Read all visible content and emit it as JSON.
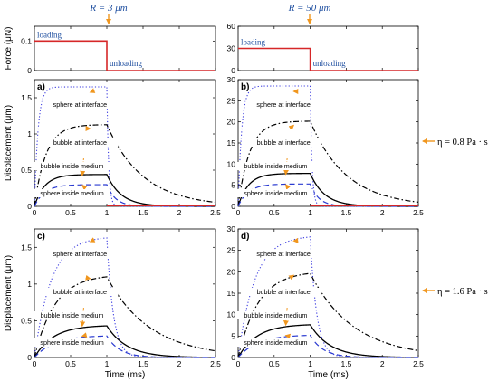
{
  "header": {
    "radius_small": "R = 3 μm",
    "radius_large": "R = 50 μm"
  },
  "viscosity": {
    "row1": "η = 0.8 Pa · s",
    "row2": "η = 1.6 Pa · s"
  },
  "colors": {
    "force": "#d62728",
    "sphere_interface": "#3a3adf",
    "bubble_interface": "#000000",
    "bubble_medium": "#000000",
    "sphere_medium": "#2a3ad0",
    "arrow": "#f0961e",
    "blue_text": "#1f4fa0"
  },
  "chart_data": [
    {
      "id": "force-left",
      "type": "line",
      "ylabel": "Force (μN)",
      "xlim": [
        0,
        2.5
      ],
      "ylim": [
        0,
        0.15
      ],
      "yticks": [
        "0",
        "0.1"
      ],
      "yticks_values": [
        0,
        0.1
      ],
      "annotations": [
        "loading",
        "unloading"
      ],
      "series": [
        {
          "x": [
            0,
            1,
            1,
            2.5
          ],
          "y": [
            0.1,
            0.1,
            0,
            0
          ]
        }
      ]
    },
    {
      "id": "force-right",
      "type": "line",
      "xlim": [
        0,
        2.5
      ],
      "ylim": [
        0,
        60
      ],
      "yticks": [
        "0",
        "30",
        "60"
      ],
      "yticks_values": [
        0,
        30,
        60
      ],
      "annotations": [
        "loading",
        "unloading"
      ],
      "series": [
        {
          "x": [
            0,
            1,
            1,
            2.5
          ],
          "y": [
            30,
            30,
            0,
            0
          ]
        }
      ]
    },
    {
      "id": "a",
      "label": "a)",
      "type": "line",
      "ylabel": "Displacement (μm)",
      "xlim": [
        0,
        2.5
      ],
      "ylim": [
        0,
        1.75
      ],
      "xticks": [
        "0",
        "0.5",
        "1",
        "1.5",
        "2",
        "2.5"
      ],
      "yticks": [
        "0",
        "0.5",
        "1",
        "1.5"
      ],
      "yticks_values": [
        0,
        0.5,
        1,
        1.5
      ],
      "annotations": [
        "sphere at interface",
        "bubble at interface",
        "bubble inside medium",
        "sphere inside medium"
      ],
      "series": [
        {
          "peak": 1.65,
          "tau_load": 0.05,
          "tau_unload": 0.025
        },
        {
          "peak": 1.13,
          "tau_load": 0.16,
          "tau_unload": 0.5
        },
        {
          "peak": 0.44,
          "tau_load": 0.14,
          "tau_unload": 0.2
        },
        {
          "peak": 0.3,
          "tau_load": 0.14,
          "tau_unload": 0.12
        }
      ]
    },
    {
      "id": "b",
      "label": "b)",
      "type": "line",
      "xlim": [
        0,
        2.5
      ],
      "ylim": [
        0,
        30
      ],
      "xticks": [
        "0",
        "0.5",
        "1",
        "1.5",
        "2",
        "2.5"
      ],
      "yticks": [
        "0",
        "5",
        "10",
        "15",
        "20",
        "25",
        "30"
      ],
      "yticks_values": [
        0,
        5,
        10,
        15,
        20,
        25,
        30
      ],
      "annotations": [
        "sphere at interface",
        "bubble at interface",
        "bubble inside medium",
        "sphere inside medium"
      ],
      "series": [
        {
          "peak": 28.5,
          "tau_load": 0.05,
          "tau_unload": 0.025
        },
        {
          "peak": 20.2,
          "tau_load": 0.16,
          "tau_unload": 0.5
        },
        {
          "peak": 7.8,
          "tau_load": 0.14,
          "tau_unload": 0.2
        },
        {
          "peak": 5.3,
          "tau_load": 0.14,
          "tau_unload": 0.12
        }
      ]
    },
    {
      "id": "c",
      "label": "c)",
      "type": "line",
      "ylabel": "Displacement (μm)",
      "xlabel": "Time (ms)",
      "xlim": [
        0,
        2.5
      ],
      "ylim": [
        0,
        1.75
      ],
      "xticks": [
        "0",
        "0.5",
        "1",
        "1.5",
        "2",
        "2.5"
      ],
      "yticks": [
        "0",
        "0.5",
        "1",
        "1.5"
      ],
      "yticks_values": [
        0,
        0.5,
        1,
        1.5
      ],
      "annotations": [
        "sphere at interface",
        "bubble at interface",
        "bubble inside medium",
        "sphere inside medium"
      ],
      "series": [
        {
          "peak": 1.65,
          "tau_load": 0.23,
          "tau_unload": 0.09
        },
        {
          "peak": 1.13,
          "tau_load": 0.28,
          "tau_unload": 0.6
        },
        {
          "peak": 0.44,
          "tau_load": 0.26,
          "tau_unload": 0.28
        },
        {
          "peak": 0.3,
          "tau_load": 0.27,
          "tau_unload": 0.18
        }
      ]
    },
    {
      "id": "d",
      "label": "d)",
      "type": "line",
      "xlabel": "Time (ms)",
      "xlim": [
        0,
        2.5
      ],
      "ylim": [
        0,
        30
      ],
      "xticks": [
        "0",
        "0.5",
        "1",
        "1.5",
        "2",
        "2.5"
      ],
      "yticks": [
        "0",
        "5",
        "10",
        "15",
        "20",
        "25",
        "30"
      ],
      "yticks_values": [
        0,
        5,
        10,
        15,
        20,
        25,
        30
      ],
      "annotations": [
        "sphere at interface",
        "bubble at interface",
        "bubble inside medium",
        "sphere inside medium"
      ],
      "series": [
        {
          "peak": 28.5,
          "tau_load": 0.23,
          "tau_unload": 0.09
        },
        {
          "peak": 20.2,
          "tau_load": 0.28,
          "tau_unload": 0.6
        },
        {
          "peak": 7.8,
          "tau_load": 0.26,
          "tau_unload": 0.28
        },
        {
          "peak": 5.3,
          "tau_load": 0.27,
          "tau_unload": 0.18
        }
      ]
    }
  ]
}
